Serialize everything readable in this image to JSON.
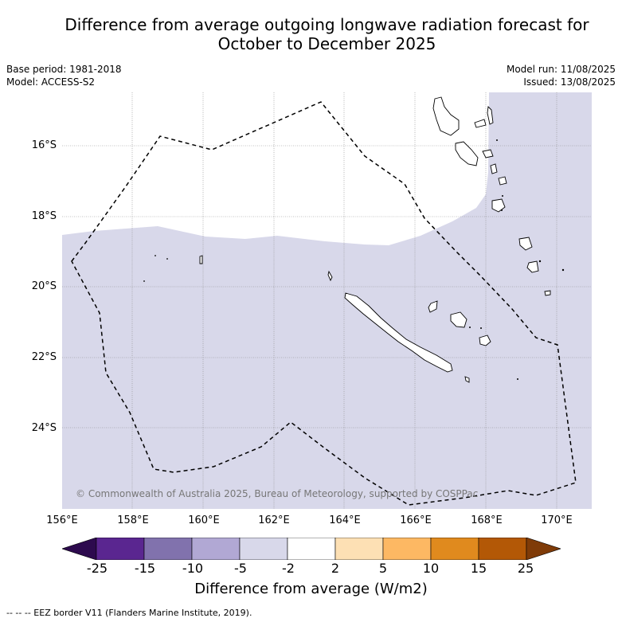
{
  "title_line1": "Difference from average outgoing longwave radiation forecast for",
  "title_line2": "October to December 2025",
  "base_period": "Base period: 1981-2018",
  "model": "Model: ACCESS-S2",
  "model_run": "Model run: 11/08/2025",
  "issued": "Issued: 13/08/2025",
  "copyright": "© Commonwealth of Australia 2025, Bureau of Meteorology, supported by COSPPac",
  "lat_labels": [
    "16°S",
    "18°S",
    "20°S",
    "22°S",
    "24°S"
  ],
  "lon_labels": [
    "156°E",
    "158°E",
    "160°E",
    "162°E",
    "164°E",
    "166°E",
    "168°E",
    "170°E"
  ],
  "colorbar": {
    "labels": [
      "-25",
      "-15",
      "-10",
      "-5",
      "-2",
      "2",
      "5",
      "10",
      "15",
      "25"
    ],
    "colors": [
      "#2d0a4e",
      "#5a2690",
      "#8172ad",
      "#b1a8d4",
      "#d8d8ea",
      "#ffffff",
      "#fde0b4",
      "#fdb863",
      "#e08a1e",
      "#b35806",
      "#7f3b08"
    ],
    "title": "Difference from average (W/m2)"
  },
  "footer": "--  --  -- EEZ border V11 (Flanders Marine Institute, 2019).",
  "shading_color": "#d8d8ea"
}
